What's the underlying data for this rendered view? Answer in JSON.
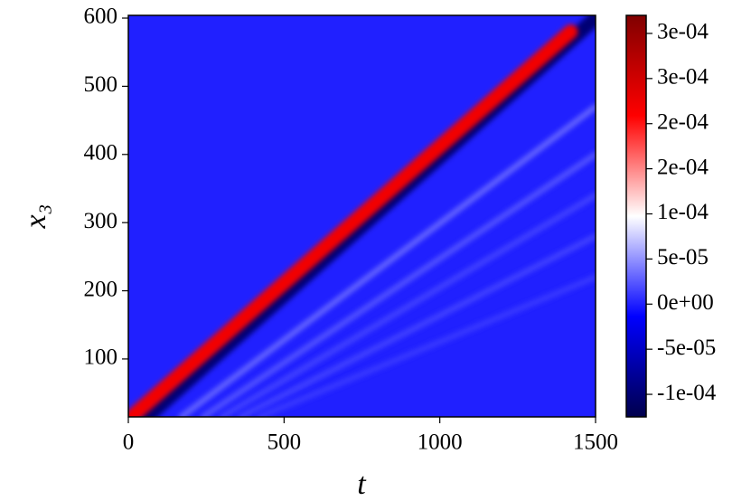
{
  "chart_data": {
    "type": "heatmap",
    "xlabel": "t",
    "ylabel": "x₃",
    "xlim": [
      0,
      1500
    ],
    "xticks": [
      0,
      500,
      1000,
      1500
    ],
    "ylim": [
      15,
      604
    ],
    "yticks": [
      100,
      200,
      300,
      400,
      500,
      600
    ],
    "colormap": [
      "#00004c",
      "#0000ff",
      "#ffffff",
      "#ff0000",
      "#800000"
    ],
    "clim": [
      -0.000125,
      0.00032
    ],
    "cticks": [
      {
        "value": -0.0001,
        "label": "-1e-04"
      },
      {
        "value": -5e-05,
        "label": "-5e-05"
      },
      {
        "value": 0,
        "label": "0e+00"
      },
      {
        "value": 5e-05,
        "label": "5e-05"
      },
      {
        "value": 0.0001,
        "label": "1e-04"
      },
      {
        "value": 0.00015,
        "label": "2e-04"
      },
      {
        "value": 0.0002,
        "label": "2e-04"
      },
      {
        "value": 0.00025,
        "label": "3e-04"
      },
      {
        "value": 0.0003,
        "label": "3e-04"
      }
    ],
    "background_value": 0,
    "features": [
      {
        "t": [
          60,
          1500
        ],
        "x3": [
          15,
          600
        ],
        "value": -0.0001
      },
      {
        "t": [
          170,
          1500
        ],
        "x3": [
          15,
          470
        ],
        "value": 4e-05
      },
      {
        "t": [
          240,
          1500
        ],
        "x3": [
          15,
          400
        ],
        "value": 3e-05
      },
      {
        "t": [
          300,
          1500
        ],
        "x3": [
          15,
          340
        ],
        "value": 2e-05
      },
      {
        "t": [
          360,
          1500
        ],
        "x3": [
          15,
          280
        ],
        "value": 2e-05
      },
      {
        "t": [
          420,
          1500
        ],
        "x3": [
          15,
          220
        ],
        "value": 1.5e-05
      },
      {
        "t": [
          10,
          1420
        ],
        "x3": [
          15,
          580
        ],
        "value": 0.00022
      }
    ]
  }
}
